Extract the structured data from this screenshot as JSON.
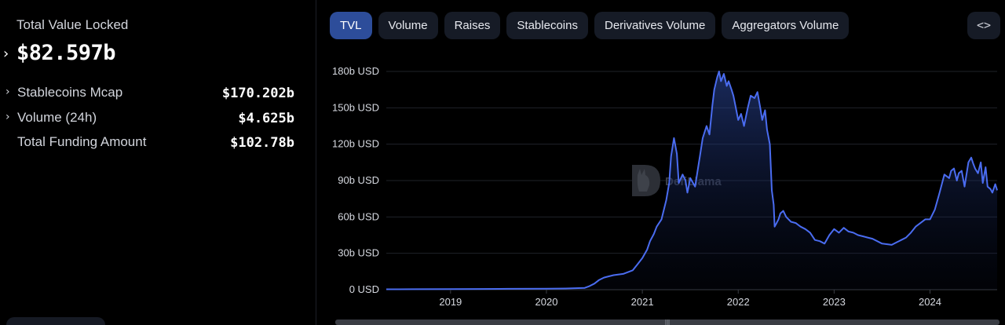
{
  "stats": {
    "tvl_label": "Total Value Locked",
    "tvl_value": "$82.597b",
    "rows": [
      {
        "label": "Stablecoins Mcap",
        "value": "$170.202b",
        "expandable": true
      },
      {
        "label": "Volume (24h)",
        "value": "$4.625b",
        "expandable": true
      },
      {
        "label": "Total Funding Amount",
        "value": "$102.78b",
        "expandable": false
      }
    ]
  },
  "tabs": [
    {
      "label": "TVL",
      "active": true
    },
    {
      "label": "Volume",
      "active": false
    },
    {
      "label": "Raises",
      "active": false
    },
    {
      "label": "Stablecoins",
      "active": false
    },
    {
      "label": "Derivatives Volume",
      "active": false
    },
    {
      "label": "Aggregators Volume",
      "active": false
    }
  ],
  "embed_button": {
    "icon": "code-icon",
    "glyph": "<>"
  },
  "watermark": "DefiLlama",
  "colors": {
    "line": "#4a6cf0",
    "active_tab": "#2d4d9a",
    "tab": "#161b26"
  },
  "chart_data": {
    "type": "area",
    "ylabel": "",
    "xlabel": "",
    "ylim": [
      0,
      180
    ],
    "y_unit": "b USD",
    "y_ticks": [
      "0 USD",
      "30b USD",
      "60b USD",
      "90b USD",
      "120b USD",
      "150b USD",
      "180b USD"
    ],
    "x_ticks": [
      "2019",
      "2020",
      "2021",
      "2022",
      "2023",
      "2024"
    ],
    "xlim": [
      2018.33,
      2024.7
    ],
    "grid": true,
    "series": [
      {
        "x": [
          2018.33,
          2018.6,
          2019.0,
          2019.3,
          2019.6,
          2020.0,
          2020.2,
          2020.4,
          2020.45,
          2020.5,
          2020.55,
          2020.6,
          2020.65,
          2020.7,
          2020.8,
          2020.9,
          2020.95,
          2021.0,
          2021.05,
          2021.08,
          2021.12,
          2021.15,
          2021.2,
          2021.25,
          2021.28,
          2021.3,
          2021.33,
          2021.36,
          2021.38,
          2021.42,
          2021.45,
          2021.47,
          2021.5,
          2021.55,
          2021.6,
          2021.63,
          2021.67,
          2021.7,
          2021.73,
          2021.75,
          2021.78,
          2021.8,
          2021.82,
          2021.85,
          2021.88,
          2021.9,
          2021.93,
          2021.95,
          2021.98,
          2022.0,
          2022.03,
          2022.06,
          2022.1,
          2022.13,
          2022.17,
          2022.2,
          2022.23,
          2022.25,
          2022.28,
          2022.3,
          2022.33,
          2022.35,
          2022.37,
          2022.38,
          2022.4,
          2022.42,
          2022.44,
          2022.47,
          2022.5,
          2022.55,
          2022.6,
          2022.65,
          2022.7,
          2022.75,
          2022.8,
          2022.85,
          2022.9,
          2022.95,
          2023.0,
          2023.05,
          2023.1,
          2023.15,
          2023.2,
          2023.25,
          2023.3,
          2023.35,
          2023.4,
          2023.5,
          2023.6,
          2023.7,
          2023.75,
          2023.8,
          2023.85,
          2023.9,
          2023.95,
          2024.0,
          2024.05,
          2024.1,
          2024.15,
          2024.2,
          2024.22,
          2024.25,
          2024.28,
          2024.3,
          2024.33,
          2024.36,
          2024.4,
          2024.43,
          2024.45,
          2024.47,
          2024.5,
          2024.53,
          2024.55,
          2024.58,
          2024.6,
          2024.63,
          2024.65,
          2024.68,
          2024.7
        ],
        "y": [
          0.3,
          0.4,
          0.5,
          0.6,
          0.7,
          0.8,
          1,
          1.5,
          3,
          5,
          8,
          10,
          11,
          12,
          13,
          16,
          21,
          26,
          33,
          40,
          46,
          52,
          58,
          74,
          88,
          110,
          125,
          112,
          88,
          95,
          90,
          80,
          92,
          85,
          110,
          125,
          135,
          128,
          152,
          165,
          175,
          180,
          172,
          178,
          168,
          172,
          165,
          160,
          148,
          140,
          145,
          135,
          150,
          160,
          158,
          163,
          150,
          140,
          148,
          132,
          120,
          82,
          70,
          52,
          55,
          58,
          63,
          65,
          60,
          56,
          55,
          52,
          50,
          47,
          41,
          40,
          38,
          45,
          50,
          47,
          51,
          48,
          47,
          45,
          44,
          43,
          42,
          38,
          37,
          41,
          43,
          47,
          52,
          55,
          58,
          58,
          66,
          80,
          95,
          92,
          98,
          100,
          90,
          96,
          98,
          85,
          105,
          109,
          104,
          100,
          96,
          105,
          88,
          101,
          85,
          83,
          80,
          87,
          82
        ]
      }
    ]
  }
}
